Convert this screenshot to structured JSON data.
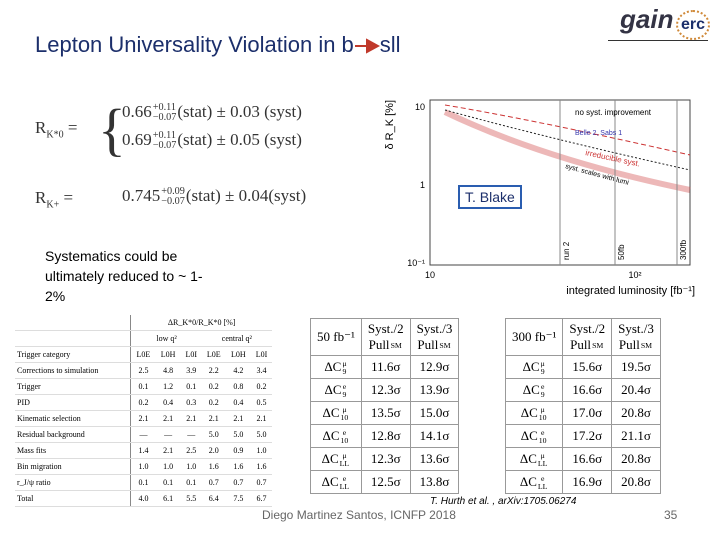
{
  "header": {
    "title_start": "Lepton Universality Violation in b",
    "title_end": "sll",
    "logo_left": "gain",
    "logo_right": "erc"
  },
  "equations": {
    "rk_star": {
      "symbol": "R",
      "sub": "K*0",
      "rows": [
        {
          "value": "0.66",
          "plus": "+0.11",
          "minus": "−0.07",
          "rest": "(stat) ± 0.03 (syst)"
        },
        {
          "value": "0.69",
          "plus": "+0.11",
          "minus": "−0.07",
          "rest": "(stat) ± 0.05 (syst)"
        }
      ]
    },
    "rk_plus": {
      "symbol": "R",
      "sub": "K+",
      "value": "0.745",
      "plus": "+0.09",
      "minus": "−0.07",
      "rest": "(stat) ± 0.04(syst)"
    }
  },
  "plot": {
    "y_label": "δ R_K [%]",
    "x_label": "integrated luminosity [fb⁻¹]",
    "yticks": [
      "10",
      "1",
      "10⁻¹"
    ],
    "xticks": [
      "10",
      "10²"
    ],
    "annotations": [
      "no syst. improvement",
      "Belle 2, Sabs 1",
      "irreducible syst.",
      "syst. scales with lumi"
    ],
    "vertical_labels": [
      "run 2",
      "50fb",
      "300fb"
    ],
    "credit": "T. Blake"
  },
  "note": "Systematics could be ultimately reduced to ~ 1-2%",
  "systematics_table": {
    "title": "ΔR_K*0/R_K*0 [%]",
    "groups": [
      "low q²",
      "central q²"
    ],
    "header": [
      "Trigger category",
      "L0E",
      "L0H",
      "L0I",
      "L0E",
      "L0H",
      "L0I"
    ],
    "rows": [
      [
        "Corrections to simulation",
        "2.5",
        "4.8",
        "3.9",
        "2.2",
        "4.2",
        "3.4"
      ],
      [
        "Trigger",
        "0.1",
        "1.2",
        "0.1",
        "0.2",
        "0.8",
        "0.2"
      ],
      [
        "PID",
        "0.2",
        "0.4",
        "0.3",
        "0.2",
        "0.4",
        "0.5"
      ],
      [
        "Kinematic selection",
        "2.1",
        "2.1",
        "2.1",
        "2.1",
        "2.1",
        "2.1"
      ],
      [
        "Residual background",
        "—",
        "—",
        "—",
        "5.0",
        "5.0",
        "5.0"
      ],
      [
        "Mass fits",
        "1.4",
        "2.1",
        "2.5",
        "2.0",
        "0.9",
        "1.0"
      ],
      [
        "Bin migration",
        "1.0",
        "1.0",
        "1.0",
        "1.6",
        "1.6",
        "1.6"
      ],
      [
        "r_J/ψ ratio",
        "0.1",
        "0.1",
        "0.1",
        "0.7",
        "0.7",
        "0.7"
      ],
      [
        "Total",
        "4.0",
        "6.1",
        "5.5",
        "6.4",
        "7.5",
        "6.7"
      ]
    ]
  },
  "projection_tables": [
    {
      "lumi": "50 fb⁻¹",
      "columns": [
        {
          "top": "Syst./2",
          "base": "Pull",
          "sub": "SM"
        },
        {
          "top": "Syst./3",
          "base": "Pull",
          "sub": "SM"
        }
      ],
      "rows": [
        {
          "base": "ΔC",
          "sub": "9",
          "sup": "μ",
          "values": [
            "11.6σ",
            "12.9σ"
          ]
        },
        {
          "base": "ΔC",
          "sub": "9",
          "sup": "e",
          "values": [
            "12.3σ",
            "13.9σ"
          ]
        },
        {
          "base": "ΔC",
          "sub": "10",
          "sup": "μ",
          "values": [
            "13.5σ",
            "15.0σ"
          ]
        },
        {
          "base": "ΔC",
          "sub": "10",
          "sup": "e",
          "values": [
            "12.8σ",
            "14.1σ"
          ]
        },
        {
          "base": "ΔC",
          "sub": "LL",
          "sup": "μ",
          "values": [
            "12.3σ",
            "13.6σ"
          ]
        },
        {
          "base": "ΔC",
          "sub": "LL",
          "sup": "e",
          "values": [
            "12.5σ",
            "13.8σ"
          ]
        }
      ]
    },
    {
      "lumi": "300 fb⁻¹",
      "columns": [
        {
          "top": "Syst./2",
          "base": "Pull",
          "sub": "SM"
        },
        {
          "top": "Syst./3",
          "base": "Pull",
          "sub": "SM"
        }
      ],
      "rows": [
        {
          "base": "ΔC",
          "sub": "9",
          "sup": "μ",
          "values": [
            "15.6σ",
            "19.5σ"
          ]
        },
        {
          "base": "ΔC",
          "sub": "9",
          "sup": "e",
          "values": [
            "16.6σ",
            "20.4σ"
          ]
        },
        {
          "base": "ΔC",
          "sub": "10",
          "sup": "μ",
          "values": [
            "17.0σ",
            "20.8σ"
          ]
        },
        {
          "base": "ΔC",
          "sub": "10",
          "sup": "e",
          "values": [
            "17.2σ",
            "21.1σ"
          ]
        },
        {
          "base": "ΔC",
          "sub": "LL",
          "sup": "μ",
          "values": [
            "16.6σ",
            "20.8σ"
          ]
        },
        {
          "base": "ΔC",
          "sub": "LL",
          "sup": "e",
          "values": [
            "16.9σ",
            "20.8σ"
          ]
        }
      ]
    }
  ],
  "footer": {
    "reference": "T. Hurth et al. , arXiv:1705.06274",
    "author": "Diego Martinez Santos, ICNFP 2018",
    "page": "35"
  }
}
